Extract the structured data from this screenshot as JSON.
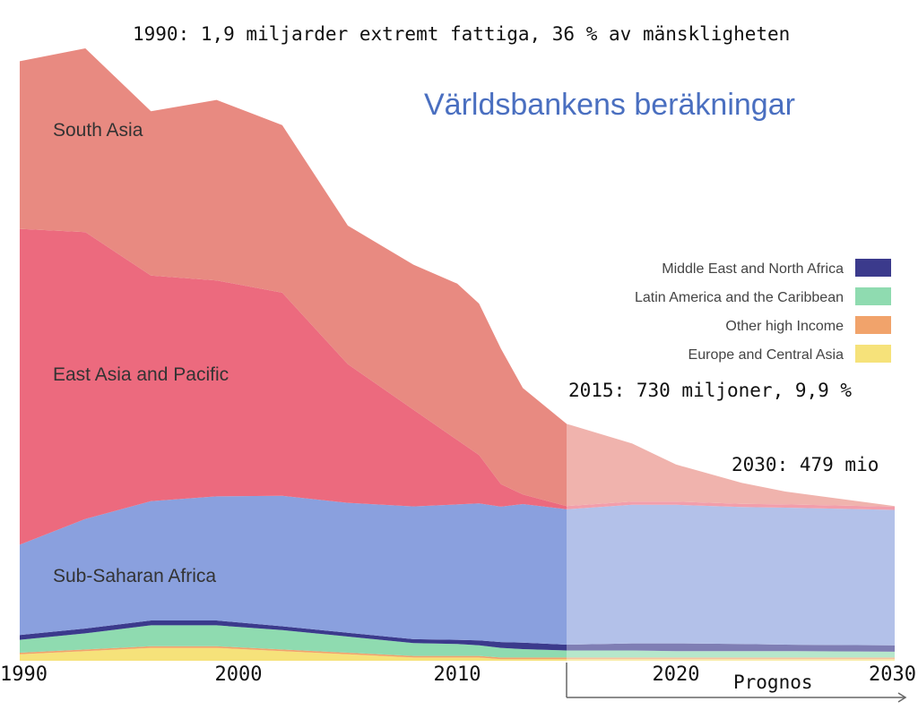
{
  "chart_data": {
    "type": "area",
    "stacked": true,
    "title": "Världsbankens beräkningar",
    "x": [
      1990,
      1993,
      1996,
      1999,
      2002,
      2005,
      2008,
      2010,
      2011,
      2012,
      2013,
      2015,
      2018,
      2020,
      2023,
      2025,
      2030
    ],
    "forecast_from": 2015,
    "forecast_label": "Prognos",
    "xticks": [
      1990,
      2000,
      2010,
      2020,
      2030
    ],
    "xlim": [
      1990,
      2030
    ],
    "ylim": [
      0,
      2.0
    ],
    "yunit": "miljarder",
    "series": [
      {
        "name": "Europe and Central Asia",
        "color": "#f6e27a",
        "values": [
          0.02,
          0.03,
          0.04,
          0.04,
          0.03,
          0.02,
          0.01,
          0.01,
          0.01,
          0.005,
          0.005,
          0.005,
          0.005,
          0.005,
          0.005,
          0.005,
          0.005
        ]
      },
      {
        "name": "Other high Income",
        "color": "#f1a36b",
        "values": [
          0.005,
          0.005,
          0.005,
          0.005,
          0.005,
          0.005,
          0.005,
          0.005,
          0.005,
          0.005,
          0.005,
          0.005,
          0.005,
          0.005,
          0.005,
          0.005,
          0.005
        ]
      },
      {
        "name": "Latin America and the Caribbean",
        "color": "#8fdbb0",
        "values": [
          0.04,
          0.05,
          0.065,
          0.065,
          0.06,
          0.05,
          0.04,
          0.037,
          0.033,
          0.03,
          0.026,
          0.022,
          0.022,
          0.02,
          0.02,
          0.02,
          0.018
        ]
      },
      {
        "name": "Middle East and North Africa",
        "color": "#3b3a8c",
        "values": [
          0.015,
          0.015,
          0.015,
          0.015,
          0.012,
          0.012,
          0.012,
          0.013,
          0.015,
          0.018,
          0.02,
          0.018,
          0.022,
          0.024,
          0.022,
          0.02,
          0.02
        ]
      },
      {
        "name": "Sub-Saharan Africa",
        "color": "#8aa0de",
        "values": [
          0.28,
          0.34,
          0.37,
          0.385,
          0.405,
          0.403,
          0.412,
          0.42,
          0.425,
          0.42,
          0.43,
          0.42,
          0.43,
          0.43,
          0.425,
          0.425,
          0.42
        ]
      },
      {
        "name": "East Asia and Pacific",
        "color": "#ec6a7e",
        "values": [
          0.98,
          0.89,
          0.7,
          0.67,
          0.63,
          0.43,
          0.3,
          0.2,
          0.15,
          0.07,
          0.03,
          0.01,
          0.01,
          0.01,
          0.01,
          0.01,
          0.01
        ]
      },
      {
        "name": "South Asia",
        "color": "#e88a81",
        "values": [
          0.52,
          0.57,
          0.51,
          0.56,
          0.52,
          0.43,
          0.45,
          0.485,
          0.47,
          0.42,
          0.33,
          0.255,
          0.18,
          0.115,
          0.065,
          0.04,
          0.002
        ]
      }
    ],
    "legend": {
      "placement": "right",
      "entries": [
        {
          "label": "Middle East and North Africa",
          "color": "#3b3a8c"
        },
        {
          "label": "Latin America and the Caribbean",
          "color": "#8fdbb0"
        },
        {
          "label": "Other high Income",
          "color": "#f1a36b"
        },
        {
          "label": "Europe and Central Asia",
          "color": "#f6e27a"
        }
      ]
    },
    "region_labels": {
      "south_asia": "South Asia",
      "east_asia": "East Asia and Pacific",
      "ssa": "Sub-Saharan Africa"
    },
    "annotations": {
      "y1990": "1990: 1,9 miljarder extremt fattiga, 36 % av mänskligheten",
      "y2015": "2015: 730 miljoner, 9,9 %",
      "y2030": "2030: 479 mio"
    }
  },
  "colors": {
    "title": "#4a6fc0",
    "forecast_overlay": "#ffffff"
  }
}
